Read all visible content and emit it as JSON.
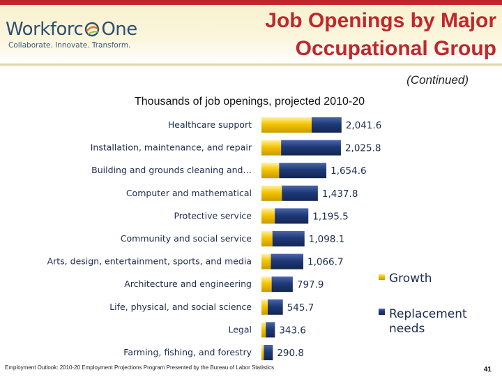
{
  "header": {
    "logo_text_left": "Workforc",
    "logo_text_right": "One",
    "logo_tagline": "Collaborate.  Innovate.  Transform.",
    "title_line1": "Job Openings by Major",
    "title_line2": "Occupational Group",
    "continued": "(Continued)"
  },
  "footer": {
    "note": "Employment Outlook: 2010-20 Employment Projections Program Presented by the Bureau of Labor Statistics",
    "page_number": "41"
  },
  "colors": {
    "growth": "#f5c400",
    "replacement": "#1f3a78",
    "title_red": "#c0272d"
  },
  "chart_data": {
    "type": "bar",
    "orientation": "horizontal",
    "stacked": true,
    "subtitle": "Thousands of job openings, projected 2010-20",
    "categories": [
      "Healthcare support",
      "Installation, maintenance, and repair",
      "Building and grounds cleaning and…",
      "Computer and mathematical",
      "Protective service",
      "Community and social service",
      "Arts, design, entertainment, sports, and media",
      "Architecture and engineering",
      "Life, physical, and social science",
      "Legal",
      "Farming, fishing, and forestry"
    ],
    "totals": [
      "2,041.6",
      "2,025.8",
      "1,654.6",
      "1,437.8",
      "1,195.5",
      "1,098.1",
      "1,066.7",
      "797.9",
      "545.7",
      "343.6",
      "290.8"
    ],
    "series": [
      {
        "name": "Growth",
        "values": [
          1280,
          500,
          450,
          520,
          340,
          280,
          240,
          260,
          160,
          110,
          60
        ]
      },
      {
        "name": "Replacement needs",
        "values": [
          761.6,
          1525.8,
          1204.6,
          917.8,
          855.5,
          818.1,
          826.7,
          537.9,
          385.7,
          233.6,
          230.8
        ]
      }
    ],
    "xlim": [
      0,
      2100
    ],
    "grid": false,
    "legend_position": "right"
  }
}
